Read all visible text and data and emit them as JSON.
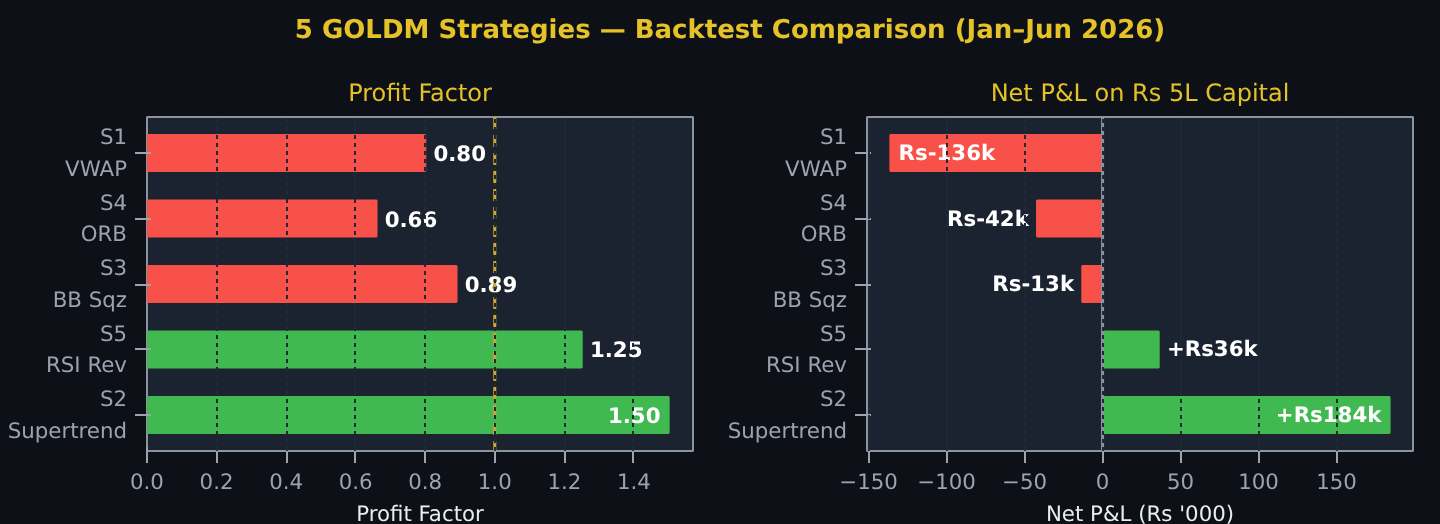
{
  "chart_data": [
    {
      "type": "bar",
      "orientation": "horizontal",
      "annotations": [
        "5 GOLDM Strategies — Backtest Comparison (Jan–Jun 2026)"
      ],
      "title": "Profit Factor",
      "xlabel": "Profit Factor",
      "categories": [
        "S1\nVWAP",
        "S4\nORB",
        "S3\nBB Sqz",
        "S5\nRSI Rev",
        "S2\nSupertrend"
      ],
      "values": [
        0.8,
        0.66,
        0.89,
        1.25,
        1.5
      ],
      "colors": [
        "#f85149",
        "#f85149",
        "#f85149",
        "#3fb950",
        "#3fb950"
      ],
      "value_labels": [
        "0.80",
        "0.66",
        "0.89",
        "1.25",
        "1.50"
      ],
      "xlim": [
        0,
        1.57
      ],
      "xticks": [
        {
          "value": 0,
          "label": "0.0"
        },
        0.2,
        0.4,
        0.6,
        0.8,
        {
          "value": 1,
          "label": "1.0"
        },
        1.2,
        1.4
      ],
      "ref_lines": [
        {
          "axis": "x",
          "value": 1.0,
          "label": null,
          "color": "#d4a72c",
          "line_style": "dashed"
        }
      ],
      "grid": "x"
    },
    {
      "type": "bar",
      "orientation": "horizontal",
      "title": "Net P&L on Rs 5L Capital",
      "xlabel": "Net P&L (Rs '000)",
      "categories": [
        "S1\nVWAP",
        "S4\nORB",
        "S3\nBB Sqz",
        "S5\nRSI Rev",
        "S2\nSupertrend"
      ],
      "values": [
        -136,
        -42,
        -13,
        36,
        184
      ],
      "colors": [
        "#f85149",
        "#f85149",
        "#f85149",
        "#3fb950",
        "#3fb950"
      ],
      "value_labels": [
        "Rs-136k",
        "Rs-42k",
        "Rs-13k",
        "+Rs36k",
        "+Rs184k"
      ],
      "xlim": [
        -151,
        199
      ],
      "xticks": [
        {
          "value": -150,
          "label": "−150"
        },
        {
          "value": -100,
          "label": "−100"
        },
        {
          "value": -50,
          "label": "−50"
        },
        0,
        50,
        100,
        150
      ],
      "ref_lines": [
        {
          "axis": "x",
          "value": 0,
          "label": null,
          "color": "#8b949e",
          "line_style": "solid"
        }
      ],
      "grid": "x"
    }
  ]
}
